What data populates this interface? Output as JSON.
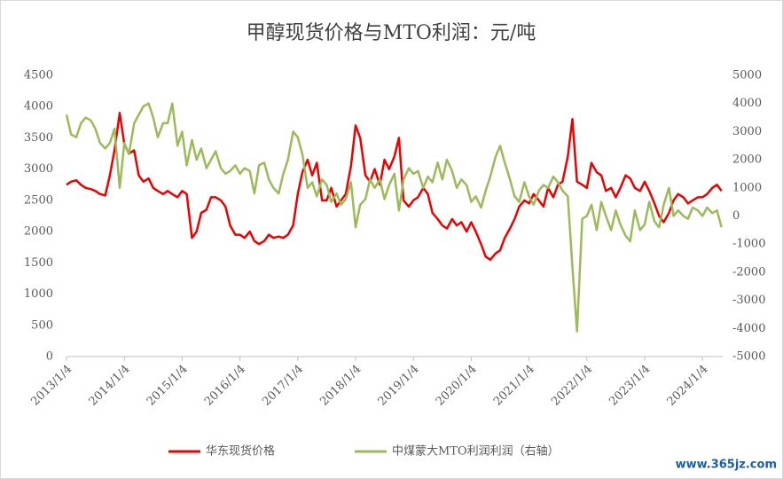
{
  "chart_data": {
    "type": "line",
    "title": "甲醇现货价格与MTO利润：元/吨",
    "watermark": "www.365jz.com",
    "x": [
      2013,
      2013.08,
      2013.17,
      2013.25,
      2013.33,
      2013.42,
      2013.5,
      2013.58,
      2013.67,
      2013.75,
      2013.83,
      2013.92,
      2014,
      2014.08,
      2014.17,
      2014.25,
      2014.33,
      2014.42,
      2014.5,
      2014.58,
      2014.67,
      2014.75,
      2014.83,
      2014.92,
      2015,
      2015.08,
      2015.17,
      2015.25,
      2015.33,
      2015.42,
      2015.5,
      2015.58,
      2015.67,
      2015.75,
      2015.83,
      2015.92,
      2016,
      2016.08,
      2016.17,
      2016.25,
      2016.33,
      2016.42,
      2016.5,
      2016.58,
      2016.67,
      2016.75,
      2016.83,
      2016.92,
      2017,
      2017.08,
      2017.17,
      2017.25,
      2017.33,
      2017.42,
      2017.5,
      2017.58,
      2017.67,
      2017.75,
      2017.83,
      2017.92,
      2018,
      2018.08,
      2018.17,
      2018.25,
      2018.33,
      2018.42,
      2018.5,
      2018.58,
      2018.67,
      2018.75,
      2018.83,
      2018.92,
      2019,
      2019.08,
      2019.17,
      2019.25,
      2019.33,
      2019.42,
      2019.5,
      2019.58,
      2019.67,
      2019.75,
      2019.83,
      2019.92,
      2020,
      2020.08,
      2020.17,
      2020.25,
      2020.33,
      2020.42,
      2020.5,
      2020.58,
      2020.67,
      2020.75,
      2020.83,
      2020.92,
      2021,
      2021.08,
      2021.17,
      2021.25,
      2021.33,
      2021.42,
      2021.5,
      2021.58,
      2021.67,
      2021.75,
      2021.83,
      2021.92,
      2022,
      2022.08,
      2022.17,
      2022.25,
      2022.33,
      2022.42,
      2022.5,
      2022.58,
      2022.67,
      2022.75,
      2022.83,
      2022.92,
      2023,
      2023.08,
      2023.17,
      2023.25,
      2023.33,
      2023.42,
      2023.5,
      2023.58,
      2023.67,
      2023.75,
      2023.83,
      2023.92,
      2024,
      2024.08,
      2024.17,
      2024.25,
      2024.33
    ],
    "series": [
      {
        "name": "华东现货价格",
        "color": "#ee0000",
        "values": [
          2750,
          2800,
          2820,
          2750,
          2700,
          2680,
          2650,
          2600,
          2580,
          2900,
          3300,
          3900,
          3400,
          3250,
          3300,
          2900,
          2800,
          2850,
          2700,
          2650,
          2600,
          2650,
          2600,
          2550,
          2650,
          2600,
          1900,
          2000,
          2300,
          2350,
          2550,
          2550,
          2500,
          2400,
          2100,
          1950,
          1950,
          1900,
          2000,
          1850,
          1800,
          1850,
          1950,
          1900,
          1920,
          1900,
          1950,
          2100,
          2600,
          2950,
          3150,
          2900,
          3100,
          2500,
          2500,
          2700,
          2400,
          2500,
          2600,
          3050,
          3700,
          3500,
          2900,
          2800,
          3000,
          2750,
          3150,
          3000,
          3200,
          3500,
          2500,
          2400,
          2500,
          2550,
          2700,
          2600,
          2300,
          2200,
          2100,
          2050,
          2200,
          2100,
          2150,
          2000,
          2150,
          2000,
          1800,
          1600,
          1550,
          1650,
          1700,
          1900,
          2050,
          2200,
          2400,
          2500,
          2450,
          2600,
          2500,
          2400,
          2700,
          2550,
          2750,
          2800,
          3200,
          3800,
          2800,
          2750,
          2700,
          3100,
          2950,
          2900,
          2650,
          2700,
          2550,
          2700,
          2900,
          2850,
          2700,
          2650,
          2800,
          2650,
          2450,
          2250,
          2150,
          2300,
          2500,
          2600,
          2550,
          2450,
          2500,
          2550,
          2550,
          2600,
          2700,
          2750,
          2650
        ]
      },
      {
        "name": "中煤蒙大MTO利润利润（右轴）",
        "color": "#9bbb59",
        "axis": "y2",
        "values": [
          3600,
          2900,
          2800,
          3300,
          3500,
          3400,
          3100,
          2600,
          2400,
          2600,
          3100,
          1000,
          2600,
          2200,
          3300,
          3600,
          3900,
          4000,
          3500,
          2800,
          3300,
          3300,
          4000,
          2500,
          3000,
          1800,
          2700,
          2000,
          2400,
          1700,
          2000,
          2300,
          1700,
          1500,
          1600,
          1800,
          1500,
          1700,
          1600,
          800,
          1800,
          1900,
          1300,
          1000,
          800,
          1500,
          2000,
          3000,
          2800,
          2200,
          1000,
          1200,
          700,
          1300,
          1100,
          500,
          800,
          400,
          600,
          1200,
          -400,
          400,
          600,
          1300,
          1000,
          1300,
          600,
          1100,
          1500,
          200,
          1300,
          1700,
          1500,
          1600,
          1000,
          1400,
          1200,
          1900,
          1300,
          2000,
          1600,
          1000,
          1300,
          1100,
          500,
          700,
          300,
          900,
          1400,
          2100,
          2500,
          1900,
          1300,
          700,
          500,
          1200,
          700,
          400,
          900,
          1100,
          1000,
          1400,
          1200,
          900,
          700,
          -1800,
          -4100,
          -100,
          0,
          400,
          -500,
          500,
          0,
          -500,
          200,
          -300,
          -700,
          -900,
          200,
          -500,
          -300,
          500,
          -200,
          -400,
          400,
          1000,
          0,
          200,
          0,
          -100,
          300,
          200,
          0,
          300,
          100,
          200,
          -400
        ]
      }
    ],
    "xlim": [
      2013,
      2024.35
    ],
    "xticks": [
      {
        "value": 2013,
        "label": "2013/1/4"
      },
      {
        "value": 2014,
        "label": "2014/1/4"
      },
      {
        "value": 2015,
        "label": "2015/1/4"
      },
      {
        "value": 2016,
        "label": "2016/1/4"
      },
      {
        "value": 2017,
        "label": "2017/1/4"
      },
      {
        "value": 2018,
        "label": "2018/1/4"
      },
      {
        "value": 2019,
        "label": "2019/1/4"
      },
      {
        "value": 2020,
        "label": "2020/1/4"
      },
      {
        "value": 2021,
        "label": "2021/1/4"
      },
      {
        "value": 2022,
        "label": "2022/1/4"
      },
      {
        "value": 2023,
        "label": "2023/1/4"
      },
      {
        "value": 2024,
        "label": "2024/1/4"
      }
    ],
    "ylim": [
      0,
      4500
    ],
    "yticks": [
      0,
      500,
      1000,
      1500,
      2000,
      2500,
      3000,
      3500,
      4000,
      4500
    ],
    "y2lim": [
      -5000,
      5000
    ],
    "y2ticks": [
      -5000,
      -4000,
      -3000,
      -2000,
      -1000,
      0,
      1000,
      2000,
      3000,
      4000,
      5000
    ],
    "legend": "bottom"
  }
}
